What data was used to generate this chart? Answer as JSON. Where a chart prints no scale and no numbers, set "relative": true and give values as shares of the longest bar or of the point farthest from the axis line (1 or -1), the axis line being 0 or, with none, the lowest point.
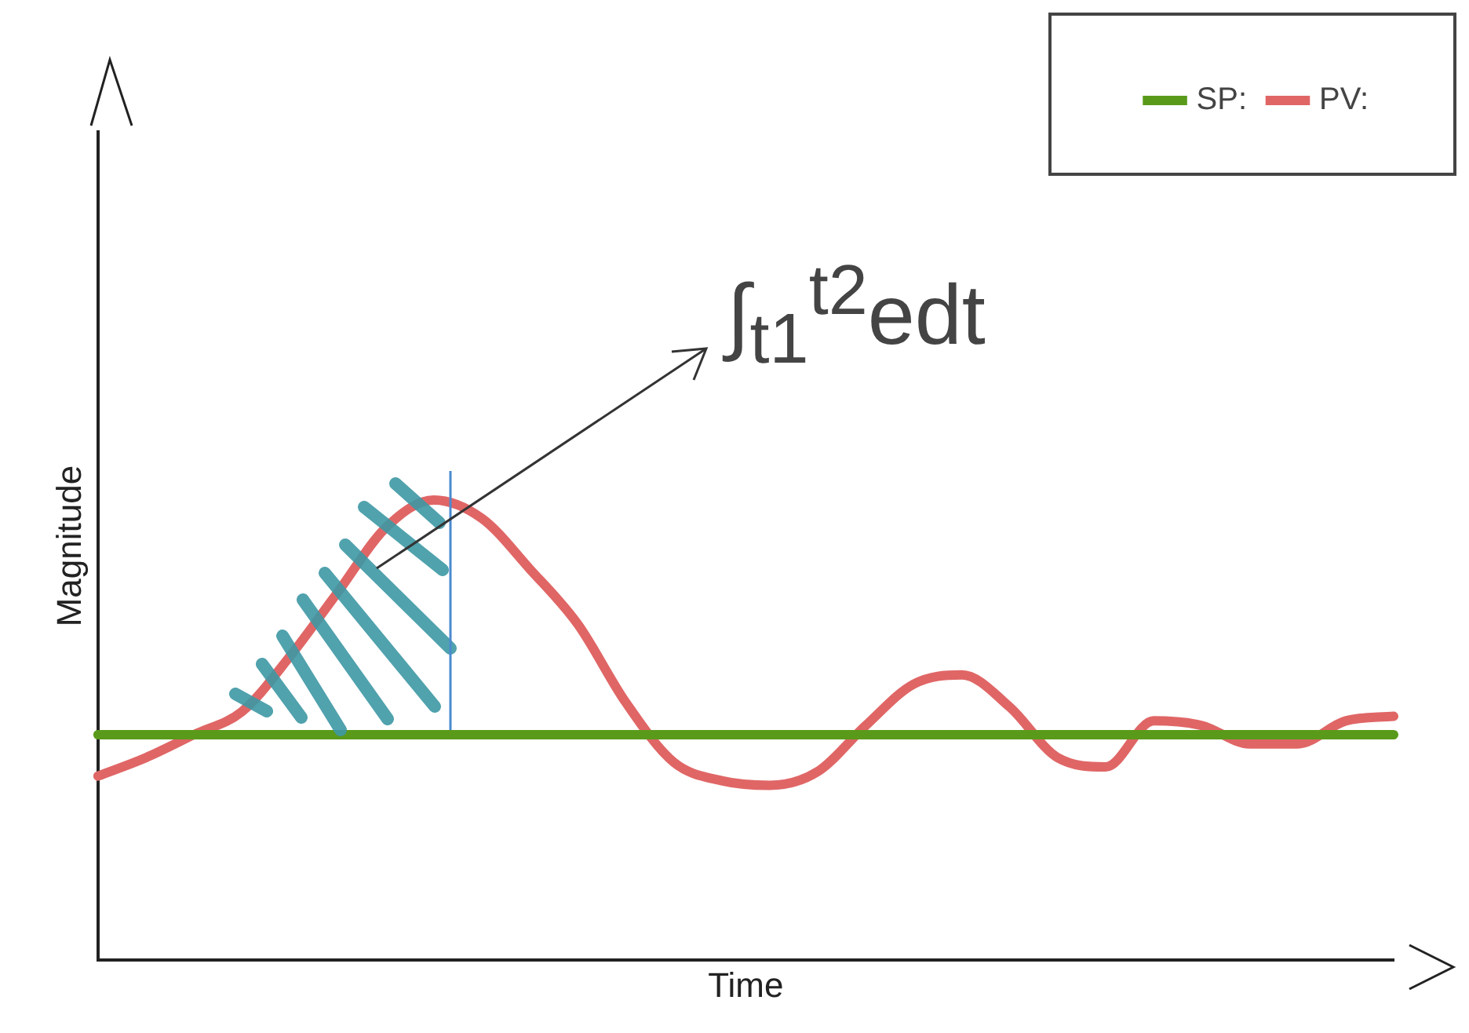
{
  "chart_data": {
    "type": "line",
    "xlabel": "Time",
    "ylabel": "Magnitude",
    "relative": true,
    "legend": "top right",
    "grid": false,
    "categories": [
      null,
      null,
      null,
      null,
      null,
      null,
      null,
      null,
      null,
      null,
      null,
      null,
      null,
      null,
      null,
      null,
      null,
      null,
      null,
      null,
      null,
      null,
      null,
      null,
      null,
      null,
      null,
      null
    ],
    "annotations": [
      "∫$_{t1}$$^{t2}$edt"
    ],
    "series": [
      {
        "name": "SP:",
        "color": "#5a9a1a",
        "values": [
          0.49,
          0.49,
          0.49,
          0.49,
          0.49,
          0.49,
          0.49,
          0.49,
          0.49,
          0.49,
          0.49,
          0.49,
          0.49,
          0.49,
          0.49,
          0.49,
          0.49,
          0.49,
          0.49,
          0.49,
          0.49,
          0.49,
          0.49,
          0.49,
          0.49,
          0.49,
          0.49,
          0.49
        ]
      },
      {
        "name": "PV:",
        "color": "#e06666",
        "values": [
          0.4,
          0.44,
          0.49,
          0.54,
          0.66,
          0.8,
          0.94,
          1.0,
          0.96,
          0.85,
          0.73,
          0.56,
          0.43,
          0.39,
          0.38,
          0.41,
          0.51,
          0.6,
          0.62,
          0.55,
          0.44,
          0.42,
          0.52,
          0.51,
          0.47,
          0.47,
          0.52,
          0.53
        ]
      }
    ]
  }
}
